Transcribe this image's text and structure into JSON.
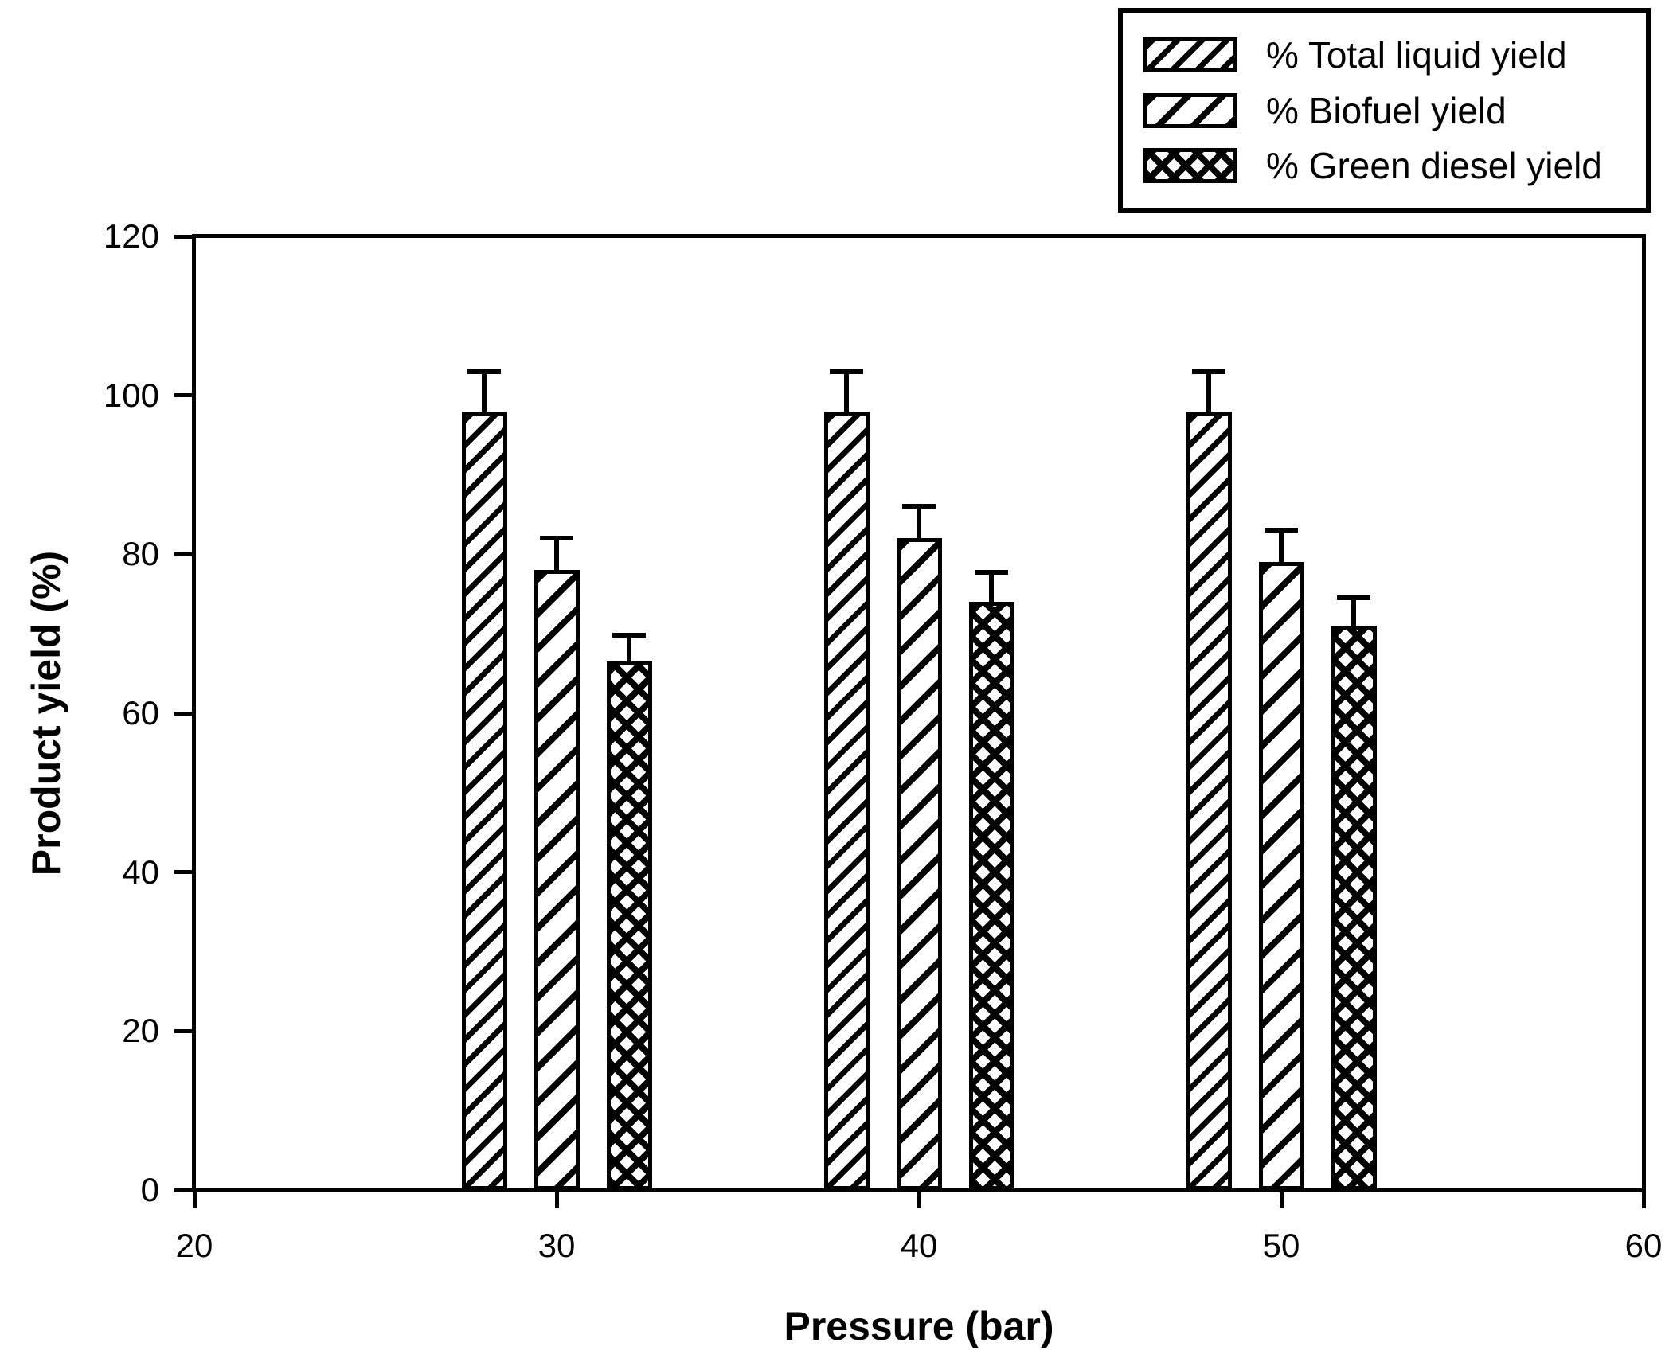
{
  "chart_data": {
    "type": "bar",
    "title": "",
    "xlabel": "Pressure (bar)",
    "ylabel": "Product yield (%)",
    "xlim": [
      20,
      60
    ],
    "ylim": [
      0,
      120
    ],
    "xticks": [
      20,
      30,
      40,
      50,
      60
    ],
    "yticks": [
      0,
      20,
      40,
      60,
      80,
      100,
      120
    ],
    "grid": false,
    "legend_position": "top-right",
    "categories": [
      30,
      40,
      50
    ],
    "series": [
      {
        "name": "% Total liquid yield",
        "hatch": "dense-diagonal",
        "values": [
          98,
          98,
          98
        ],
        "errors_plus": [
          5,
          5,
          5
        ]
      },
      {
        "name": "% Biofuel yield",
        "hatch": "sparse-diagonal",
        "values": [
          78,
          82,
          79
        ],
        "errors_plus": [
          4,
          4,
          4
        ]
      },
      {
        "name": "% Green diesel yield",
        "hatch": "crosshatch",
        "values": [
          66.5,
          74,
          71
        ],
        "errors_plus": [
          3.3,
          3.7,
          3.5
        ]
      }
    ],
    "colors": {
      "foreground": "#000000",
      "background": "#ffffff"
    }
  }
}
